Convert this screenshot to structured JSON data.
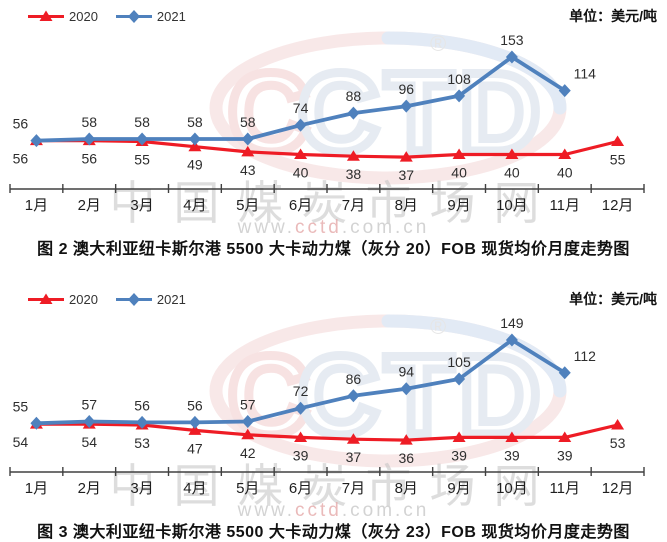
{
  "watermark": {
    "logo_c": "C",
    "logo_rest": "CTD",
    "registered_mark": "®",
    "site_name": "中国煤炭市场网",
    "site_url_www": "www.",
    "site_url_mid": "cctd",
    "site_url_end": ".com.cn"
  },
  "legend": [
    {
      "label": "2020",
      "color": "#ee1c25",
      "marker": "triangle"
    },
    {
      "label": "2021",
      "color": "#4f81bd",
      "marker": "diamond"
    }
  ],
  "chart_data": [
    {
      "type": "line",
      "title": "图 2  澳大利亚纽卡斯尔港 5500 大卡动力煤（灰分 20）FOB 现货均价月度走势图",
      "unit": "单位：美元/吨",
      "xlabel": "",
      "ylabel": "美元/吨",
      "ylim": [
        0,
        180
      ],
      "grid": false,
      "legend_position": "top-left",
      "categories": [
        "1月",
        "2月",
        "3月",
        "4月",
        "5月",
        "6月",
        "7月",
        "8月",
        "9月",
        "10月",
        "11月",
        "12月"
      ],
      "series": [
        {
          "name": "2020",
          "color": "#ee1c25",
          "marker": "triangle",
          "label_position": "below",
          "values": [
            56,
            56,
            55,
            49,
            43,
            40,
            38,
            37,
            40,
            40,
            40,
            55
          ]
        },
        {
          "name": "2021",
          "color": "#4f81bd",
          "marker": "diamond",
          "label_position": "above",
          "values": [
            56,
            58,
            58,
            58,
            58,
            74,
            88,
            96,
            108,
            153,
            114,
            null
          ]
        }
      ]
    },
    {
      "type": "line",
      "title": "图 3  澳大利亚纽卡斯尔港 5500 大卡动力煤（灰分 23）FOB 现货均价月度走势图",
      "unit": "单位：美元/吨",
      "xlabel": "",
      "ylabel": "美元/吨",
      "ylim": [
        0,
        175
      ],
      "grid": false,
      "legend_position": "top-left",
      "categories": [
        "1月",
        "2月",
        "3月",
        "4月",
        "5月",
        "6月",
        "7月",
        "8月",
        "9月",
        "10月",
        "11月",
        "12月"
      ],
      "series": [
        {
          "name": "2020",
          "color": "#ee1c25",
          "marker": "triangle",
          "label_position": "below",
          "values": [
            54,
            54,
            53,
            47,
            42,
            39,
            37,
            36,
            39,
            39,
            39,
            53
          ]
        },
        {
          "name": "2021",
          "color": "#4f81bd",
          "marker": "diamond",
          "label_position": "above",
          "values": [
            55,
            57,
            56,
            56,
            57,
            72,
            86,
            94,
            105,
            149,
            112,
            null
          ]
        }
      ]
    }
  ]
}
